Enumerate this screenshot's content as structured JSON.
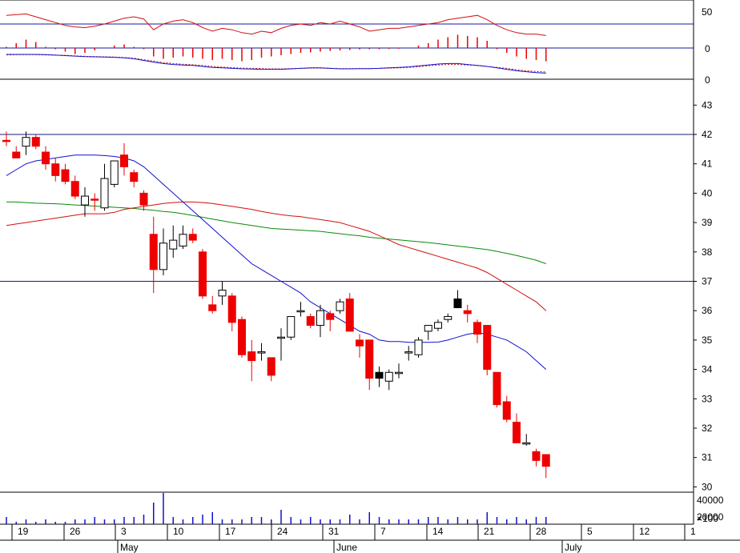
{
  "chart_data": {
    "type": "candlestick",
    "price_axis": {
      "ylim": [
        29.6,
        42.9
      ],
      "ticks": [
        30,
        31,
        32,
        33,
        34,
        35,
        36,
        37,
        38,
        39,
        40,
        41,
        42,
        43
      ]
    },
    "rsi_ticks": [
      "50",
      "0"
    ],
    "macd_ticks": [
      "0"
    ],
    "stoch_ticks": [
      "0"
    ],
    "volume_ticks": [
      "40000",
      "20000"
    ],
    "volume_unit": "×100",
    "x_ticks": [
      "19",
      "26",
      "3",
      "10",
      "17",
      "24",
      "31",
      "7",
      "14",
      "21",
      "28",
      "5",
      "12",
      "1"
    ],
    "months": [
      "May",
      "June",
      "July"
    ],
    "hlines": [
      42.0,
      37.0
    ],
    "candles": [
      {
        "o": 41.8,
        "h": 42.1,
        "l": 41.6,
        "c": 41.8,
        "t": "down"
      },
      {
        "o": 41.4,
        "h": 41.6,
        "l": 41.3,
        "c": 41.2,
        "t": "down"
      },
      {
        "o": 41.6,
        "h": 42.1,
        "l": 41.3,
        "c": 41.9,
        "t": "up"
      },
      {
        "o": 41.9,
        "h": 42.0,
        "l": 41.5,
        "c": 41.6,
        "t": "down"
      },
      {
        "o": 41.4,
        "h": 41.6,
        "l": 40.8,
        "c": 41.0,
        "t": "down"
      },
      {
        "o": 41.0,
        "h": 41.2,
        "l": 40.4,
        "c": 40.6,
        "t": "down"
      },
      {
        "o": 40.8,
        "h": 41.0,
        "l": 40.3,
        "c": 40.4,
        "t": "down"
      },
      {
        "o": 40.4,
        "h": 40.6,
        "l": 39.8,
        "c": 39.9,
        "t": "down"
      },
      {
        "o": 39.6,
        "h": 40.2,
        "l": 39.2,
        "c": 39.9,
        "t": "up"
      },
      {
        "o": 39.8,
        "h": 40.0,
        "l": 39.4,
        "c": 39.8,
        "t": "down"
      },
      {
        "o": 39.5,
        "h": 41.0,
        "l": 39.4,
        "c": 40.5,
        "t": "up"
      },
      {
        "o": 40.3,
        "h": 41.1,
        "l": 40.2,
        "c": 41.1,
        "t": "up"
      },
      {
        "o": 41.3,
        "h": 41.7,
        "l": 40.6,
        "c": 40.9,
        "t": "down"
      },
      {
        "o": 40.7,
        "h": 40.8,
        "l": 40.2,
        "c": 40.4,
        "t": "down"
      },
      {
        "o": 40.0,
        "h": 40.1,
        "l": 39.4,
        "c": 39.6,
        "t": "down"
      },
      {
        "o": 38.6,
        "h": 39.2,
        "l": 36.6,
        "c": 37.4,
        "t": "down"
      },
      {
        "o": 37.4,
        "h": 38.8,
        "l": 37.2,
        "c": 38.3,
        "t": "up"
      },
      {
        "o": 38.1,
        "h": 38.9,
        "l": 37.8,
        "c": 38.4,
        "t": "up"
      },
      {
        "o": 38.2,
        "h": 38.9,
        "l": 38.1,
        "c": 38.6,
        "t": "up"
      },
      {
        "o": 38.6,
        "h": 38.8,
        "l": 38.3,
        "c": 38.4,
        "t": "down"
      },
      {
        "o": 38.0,
        "h": 38.1,
        "l": 36.4,
        "c": 36.5,
        "t": "down"
      },
      {
        "o": 36.2,
        "h": 36.5,
        "l": 35.9,
        "c": 36.0,
        "t": "down"
      },
      {
        "o": 36.5,
        "h": 37.0,
        "l": 36.2,
        "c": 36.7,
        "t": "up"
      },
      {
        "o": 36.5,
        "h": 36.6,
        "l": 35.3,
        "c": 35.6,
        "t": "down"
      },
      {
        "o": 35.7,
        "h": 35.8,
        "l": 34.4,
        "c": 34.5,
        "t": "down"
      },
      {
        "o": 34.6,
        "h": 35.0,
        "l": 33.6,
        "c": 34.3,
        "t": "down"
      },
      {
        "o": 34.6,
        "h": 34.9,
        "l": 34.3,
        "c": 34.6,
        "t": "up"
      },
      {
        "o": 34.4,
        "h": 34.4,
        "l": 33.6,
        "c": 33.8,
        "t": "down"
      },
      {
        "o": 35.1,
        "h": 35.4,
        "l": 34.3,
        "c": 35.1,
        "t": "up"
      },
      {
        "o": 35.1,
        "h": 35.8,
        "l": 35.0,
        "c": 35.8,
        "t": "up"
      },
      {
        "o": 36.0,
        "h": 36.3,
        "l": 35.8,
        "c": 36.0,
        "t": "up"
      },
      {
        "o": 35.8,
        "h": 35.9,
        "l": 35.4,
        "c": 35.5,
        "t": "down"
      },
      {
        "o": 35.5,
        "h": 36.2,
        "l": 35.1,
        "c": 36.0,
        "t": "up"
      },
      {
        "o": 35.9,
        "h": 36.0,
        "l": 35.3,
        "c": 35.7,
        "t": "down"
      },
      {
        "o": 36.0,
        "h": 36.4,
        "l": 35.9,
        "c": 36.3,
        "t": "up"
      },
      {
        "o": 36.4,
        "h": 36.6,
        "l": 35.3,
        "c": 35.3,
        "t": "down"
      },
      {
        "o": 35.0,
        "h": 35.2,
        "l": 34.4,
        "c": 34.8,
        "t": "down"
      },
      {
        "o": 35.0,
        "h": 35.0,
        "l": 33.3,
        "c": 33.7,
        "t": "down"
      },
      {
        "o": 33.9,
        "h": 34.1,
        "l": 33.4,
        "c": 33.7,
        "t": "black"
      },
      {
        "o": 33.6,
        "h": 34.0,
        "l": 33.3,
        "c": 33.9,
        "t": "up"
      },
      {
        "o": 33.9,
        "h": 34.2,
        "l": 33.7,
        "c": 33.9,
        "t": "up"
      },
      {
        "o": 34.6,
        "h": 34.8,
        "l": 34.3,
        "c": 34.6,
        "t": "up"
      },
      {
        "o": 34.5,
        "h": 35.1,
        "l": 34.4,
        "c": 35.0,
        "t": "up"
      },
      {
        "o": 35.3,
        "h": 35.5,
        "l": 35.0,
        "c": 35.5,
        "t": "up"
      },
      {
        "o": 35.4,
        "h": 35.7,
        "l": 35.3,
        "c": 35.6,
        "t": "up"
      },
      {
        "o": 35.7,
        "h": 35.9,
        "l": 35.6,
        "c": 35.8,
        "t": "up"
      },
      {
        "o": 36.4,
        "h": 36.7,
        "l": 36.1,
        "c": 36.1,
        "t": "black"
      },
      {
        "o": 36.0,
        "h": 36.2,
        "l": 35.6,
        "c": 35.9,
        "t": "down"
      },
      {
        "o": 35.6,
        "h": 35.7,
        "l": 34.9,
        "c": 35.2,
        "t": "down"
      },
      {
        "o": 35.5,
        "h": 35.5,
        "l": 33.8,
        "c": 34.0,
        "t": "down"
      },
      {
        "o": 33.9,
        "h": 33.9,
        "l": 32.7,
        "c": 32.8,
        "t": "down"
      },
      {
        "o": 32.9,
        "h": 33.1,
        "l": 32.2,
        "c": 32.3,
        "t": "down"
      },
      {
        "o": 32.2,
        "h": 32.5,
        "l": 31.5,
        "c": 31.5,
        "t": "down"
      },
      {
        "o": 31.5,
        "h": 31.8,
        "l": 31.4,
        "c": 31.5,
        "t": "up"
      },
      {
        "o": 31.2,
        "h": 31.3,
        "l": 30.7,
        "c": 30.9,
        "t": "down"
      },
      {
        "o": 31.1,
        "h": 31.1,
        "l": 30.3,
        "c": 30.7,
        "t": "down"
      }
    ],
    "volume": [
      3,
      1,
      2,
      1,
      2,
      1,
      1,
      2,
      2,
      3,
      2,
      2,
      3,
      3,
      4,
      9,
      13,
      3,
      2,
      3,
      4,
      5,
      2,
      2,
      2,
      3,
      3,
      2,
      6,
      3,
      2,
      3,
      2,
      2,
      2,
      4,
      2,
      5,
      3,
      2,
      2,
      2,
      2,
      3,
      3,
      2,
      3,
      2,
      2,
      5,
      3,
      2,
      3,
      2,
      3,
      3
    ],
    "ma_blue": [
      40.6,
      40.8,
      41.0,
      41.1,
      41.15,
      41.2,
      41.25,
      41.3,
      41.3,
      41.3,
      41.28,
      41.25,
      41.2,
      41.1,
      40.9,
      40.6,
      40.3,
      40.0,
      39.7,
      39.4,
      39.1,
      38.8,
      38.5,
      38.2,
      37.9,
      37.6,
      37.4,
      37.2,
      37.0,
      36.8,
      36.6,
      36.3,
      36.1,
      35.9,
      35.7,
      35.5,
      35.3,
      35.2,
      35.0,
      34.95,
      34.95,
      34.92,
      34.92,
      34.92,
      34.93,
      35.0,
      35.1,
      35.2,
      35.25,
      35.2,
      35.1,
      35.0,
      34.8,
      34.6,
      34.3,
      34.0
    ],
    "ma_red": [
      38.9,
      38.95,
      39.0,
      39.05,
      39.1,
      39.15,
      39.2,
      39.25,
      39.3,
      39.3,
      39.3,
      39.35,
      39.45,
      39.5,
      39.55,
      39.6,
      39.65,
      39.68,
      39.7,
      39.7,
      39.68,
      39.65,
      39.6,
      39.55,
      39.5,
      39.45,
      39.38,
      39.32,
      39.27,
      39.23,
      39.2,
      39.15,
      39.1,
      39.05,
      39.0,
      38.9,
      38.8,
      38.7,
      38.55,
      38.4,
      38.25,
      38.15,
      38.05,
      37.95,
      37.85,
      37.75,
      37.65,
      37.55,
      37.45,
      37.3,
      37.1,
      36.9,
      36.7,
      36.5,
      36.3,
      36.0
    ],
    "ma_green": [
      39.7,
      39.7,
      39.68,
      39.66,
      39.65,
      39.64,
      39.62,
      39.6,
      39.58,
      39.56,
      39.54,
      39.52,
      39.5,
      39.48,
      39.45,
      39.42,
      39.38,
      39.35,
      39.3,
      39.24,
      39.18,
      39.12,
      39.06,
      39.0,
      38.95,
      38.9,
      38.85,
      38.8,
      38.78,
      38.76,
      38.74,
      38.72,
      38.7,
      38.66,
      38.62,
      38.58,
      38.55,
      38.5,
      38.47,
      38.44,
      38.41,
      38.38,
      38.35,
      38.32,
      38.28,
      38.24,
      38.2,
      38.16,
      38.12,
      38.08,
      38.02,
      37.95,
      37.88,
      37.8,
      37.72,
      37.6
    ],
    "rsi": [
      62,
      63,
      64,
      60,
      56,
      52,
      48,
      46,
      45,
      47,
      50,
      54,
      58,
      60,
      57,
      42,
      50,
      54,
      56,
      52,
      45,
      40,
      44,
      42,
      38,
      36,
      40,
      38,
      44,
      48,
      50,
      48,
      52,
      50,
      54,
      50,
      46,
      40,
      42,
      44,
      44,
      46,
      48,
      50,
      52,
      56,
      58,
      60,
      62,
      56,
      48,
      42,
      38,
      36,
      36,
      34
    ],
    "macd": [
      0.05,
      0.2,
      0.35,
      0.25,
      0.05,
      -0.05,
      -0.15,
      -0.25,
      -0.2,
      -0.1,
      0.0,
      0.1,
      0.15,
      0.05,
      -0.05,
      -0.35,
      -0.45,
      -0.4,
      -0.35,
      -0.4,
      -0.45,
      -0.5,
      -0.45,
      -0.5,
      -0.55,
      -0.5,
      -0.4,
      -0.35,
      -0.3,
      -0.25,
      -0.2,
      -0.18,
      -0.15,
      -0.12,
      -0.1,
      -0.08,
      -0.06,
      -0.05,
      -0.05,
      -0.04,
      -0.03,
      0.02,
      0.1,
      0.2,
      0.35,
      0.45,
      0.55,
      0.5,
      0.45,
      0.3,
      -0.05,
      -0.2,
      -0.35,
      -0.45,
      -0.5,
      -0.55
    ],
    "stoch_blue": [
      80,
      80,
      80,
      80,
      79,
      77,
      75,
      73,
      71,
      70,
      69,
      68,
      66,
      62,
      55,
      48,
      42,
      38,
      36,
      34,
      30,
      26,
      24,
      22,
      20,
      19,
      18,
      18,
      18,
      20,
      22,
      24,
      24,
      22,
      20,
      20,
      21,
      21,
      22,
      24,
      26,
      28,
      32,
      36,
      40,
      42,
      42,
      38,
      34,
      30,
      24,
      18,
      12,
      8,
      4,
      2
    ],
    "stoch_red": [
      78,
      79,
      79,
      79,
      78,
      77,
      76,
      74,
      72,
      71,
      70,
      69,
      67,
      64,
      58,
      52,
      46,
      42,
      39,
      37,
      34,
      30,
      27,
      25,
      23,
      22,
      21,
      20,
      20,
      21,
      22,
      23,
      23,
      22,
      21,
      21,
      21,
      21,
      22,
      23,
      24,
      26,
      29,
      33,
      36,
      38,
      38,
      36,
      34,
      30,
      26,
      22,
      16,
      12,
      9,
      7
    ]
  }
}
